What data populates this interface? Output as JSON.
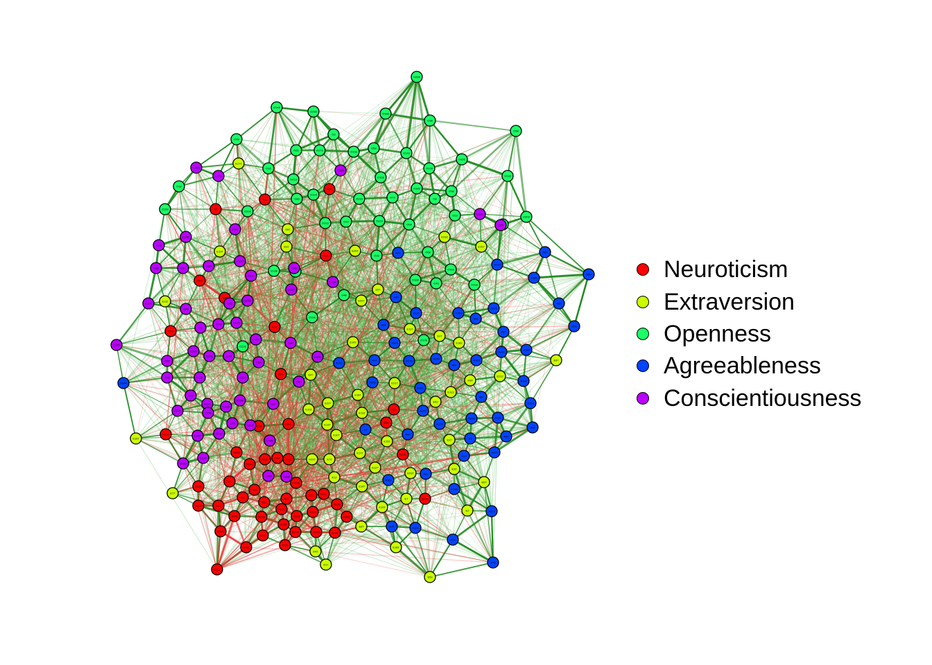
{
  "legend": [
    {
      "label": "Neuroticism",
      "color": "#ff0000"
    },
    {
      "label": "Extraversion",
      "color": "#ccff00"
    },
    {
      "label": "Openness",
      "color": "#1aff66"
    },
    {
      "label": "Agreeableness",
      "color": "#0044ff"
    },
    {
      "label": "Conscientiousness",
      "color": "#bb00ff"
    }
  ],
  "edge_colors": {
    "positive": "#1f8a1f",
    "negative": "#ee3333"
  },
  "nodes": [
    {
      "id": "O208",
      "g": 2
    },
    {
      "id": "O148",
      "g": 2
    },
    {
      "id": "O238",
      "g": 2
    },
    {
      "id": "O188",
      "g": 2
    },
    {
      "id": "O38",
      "g": 2
    },
    {
      "id": "O58",
      "g": 2
    },
    {
      "id": "O78",
      "g": 2
    },
    {
      "id": "O3",
      "g": 2
    },
    {
      "id": "O63",
      "g": 2
    },
    {
      "id": "O173",
      "g": 2
    },
    {
      "id": "O108",
      "g": 2
    },
    {
      "id": "O53",
      "g": 2
    },
    {
      "id": "O143",
      "g": 2
    },
    {
      "id": "O158",
      "g": 2
    },
    {
      "id": "E172",
      "g": 1
    },
    {
      "id": "O33",
      "g": 2
    },
    {
      "id": "O128",
      "g": 2
    },
    {
      "id": "O118",
      "g": 2
    },
    {
      "id": "O213",
      "g": 2
    },
    {
      "id": "O168",
      "g": 2
    },
    {
      "id": "O18",
      "g": 2
    },
    {
      "id": "O123",
      "g": 2
    },
    {
      "id": "O189",
      "g": 2
    },
    {
      "id": "O98",
      "g": 2
    },
    {
      "id": "O83",
      "g": 2
    },
    {
      "id": "O233",
      "g": 2
    },
    {
      "id": "O73",
      "g": 2
    },
    {
      "id": "O8",
      "g": 2
    },
    {
      "id": "O153",
      "g": 2
    },
    {
      "id": "O228",
      "g": 2
    },
    {
      "id": "O13",
      "g": 2
    },
    {
      "id": "O203",
      "g": 2
    },
    {
      "id": "O113",
      "g": 2
    },
    {
      "id": "O23",
      "g": 2
    },
    {
      "id": "O223",
      "g": 2
    },
    {
      "id": "O93",
      "g": 2
    },
    {
      "id": "O103",
      "g": 2
    },
    {
      "id": "E82",
      "g": 1
    },
    {
      "id": "E232",
      "g": 1
    },
    {
      "id": "E22",
      "g": 1
    },
    {
      "id": "E202",
      "g": 1
    },
    {
      "id": "E157",
      "g": 1
    },
    {
      "id": "E197",
      "g": 1
    },
    {
      "id": "O28",
      "g": 2
    },
    {
      "id": "O68",
      "g": 2
    },
    {
      "id": "O138",
      "g": 2
    },
    {
      "id": "O88",
      "g": 2
    },
    {
      "id": "O43",
      "g": 2
    },
    {
      "id": "O183",
      "g": 2
    },
    {
      "id": "O193",
      "g": 2
    },
    {
      "id": "O163",
      "g": 2
    },
    {
      "id": "O48",
      "g": 2
    },
    {
      "id": "E57",
      "g": 1
    },
    {
      "id": "E207",
      "g": 1
    },
    {
      "id": "E112",
      "g": 1
    },
    {
      "id": "O198",
      "g": 2
    },
    {
      "id": "E117",
      "g": 1
    },
    {
      "id": "E27",
      "g": 1
    },
    {
      "id": "O178",
      "g": 2
    },
    {
      "id": "E142",
      "g": 1
    },
    {
      "id": "E182",
      "g": 1
    },
    {
      "id": "O133",
      "g": 2
    },
    {
      "id": "E97",
      "g": 1
    },
    {
      "id": "E47",
      "g": 1
    },
    {
      "id": "E217",
      "g": 1
    },
    {
      "id": "E92",
      "g": 1
    },
    {
      "id": "E212",
      "g": 1
    },
    {
      "id": "E122",
      "g": 1
    },
    {
      "id": "E62",
      "g": 1
    },
    {
      "id": "E227",
      "g": 1
    },
    {
      "id": "E187",
      "g": 1
    },
    {
      "id": "E192",
      "g": 1
    },
    {
      "id": "E132",
      "g": 1
    },
    {
      "id": "E137",
      "g": 1
    },
    {
      "id": "E167",
      "g": 1
    },
    {
      "id": "E107",
      "g": 1
    },
    {
      "id": "E152",
      "g": 1
    },
    {
      "id": "E37",
      "g": 1
    },
    {
      "id": "E222",
      "g": 1
    },
    {
      "id": "E72",
      "g": 1
    },
    {
      "id": "E177",
      "g": 1
    },
    {
      "id": "E127",
      "g": 1
    },
    {
      "id": "E32",
      "g": 1
    },
    {
      "id": "E237",
      "g": 1
    },
    {
      "id": "E12",
      "g": 1
    },
    {
      "id": "E67",
      "g": 1
    },
    {
      "id": "E147",
      "g": 1
    },
    {
      "id": "E77",
      "g": 1
    },
    {
      "id": "E7",
      "g": 1
    },
    {
      "id": "E102",
      "g": 1
    },
    {
      "id": "E2",
      "g": 1
    },
    {
      "id": "E87",
      "g": 1
    },
    {
      "id": "E162",
      "g": 1
    },
    {
      "id": "E42",
      "g": 1
    },
    {
      "id": "E17",
      "g": 1
    },
    {
      "id": "E52",
      "g": 1
    },
    {
      "id": "A99",
      "g": 3
    },
    {
      "id": "A80",
      "g": 3
    },
    {
      "id": "A29",
      "g": 3
    },
    {
      "id": "A129",
      "g": 3
    },
    {
      "id": "A188",
      "g": 3
    },
    {
      "id": "A39",
      "g": 3
    },
    {
      "id": "A45",
      "g": 3
    },
    {
      "id": "A219",
      "g": 3
    },
    {
      "id": "A110",
      "g": 3
    },
    {
      "id": "A24",
      "g": 3
    },
    {
      "id": "A109",
      "g": 3
    },
    {
      "id": "A44",
      "g": 3
    },
    {
      "id": "A57",
      "g": 3
    },
    {
      "id": "A78",
      "g": 3
    },
    {
      "id": "A124",
      "g": 3
    },
    {
      "id": "A134",
      "g": 3
    },
    {
      "id": "A164",
      "g": 3
    },
    {
      "id": "A204",
      "g": 3
    },
    {
      "id": "A14",
      "g": 3
    },
    {
      "id": "A174",
      "g": 3
    },
    {
      "id": "A84",
      "g": 3
    },
    {
      "id": "A199",
      "g": 3
    },
    {
      "id": "A159",
      "g": 3
    },
    {
      "id": "A209",
      "g": 3
    },
    {
      "id": "A114",
      "g": 3
    },
    {
      "id": "A139",
      "g": 3
    },
    {
      "id": "A64",
      "g": 3
    },
    {
      "id": "A234",
      "g": 3
    },
    {
      "id": "A154",
      "g": 3
    },
    {
      "id": "A119",
      "g": 3
    },
    {
      "id": "A149",
      "g": 3
    },
    {
      "id": "A179",
      "g": 3
    },
    {
      "id": "A34",
      "g": 3
    },
    {
      "id": "A4",
      "g": 3
    },
    {
      "id": "A69",
      "g": 3
    },
    {
      "id": "A89",
      "g": 3
    },
    {
      "id": "A9",
      "g": 3
    },
    {
      "id": "A94",
      "g": 3
    },
    {
      "id": "A224",
      "g": 3
    },
    {
      "id": "A19",
      "g": 3
    },
    {
      "id": "A104",
      "g": 3
    },
    {
      "id": "A184",
      "g": 3
    },
    {
      "id": "A214",
      "g": 3
    },
    {
      "id": "A74",
      "g": 3
    },
    {
      "id": "A169",
      "g": 3
    },
    {
      "id": "A54",
      "g": 3
    },
    {
      "id": "A49",
      "g": 3
    },
    {
      "id": "A144",
      "g": 3
    },
    {
      "id": "N66",
      "g": 0
    },
    {
      "id": "N1",
      "g": 0
    },
    {
      "id": "N11",
      "g": 0
    },
    {
      "id": "N81",
      "g": 0
    },
    {
      "id": "N16",
      "g": 0
    },
    {
      "id": "N86",
      "g": 0
    },
    {
      "id": "N76",
      "g": 0
    },
    {
      "id": "N71",
      "g": 0
    },
    {
      "id": "N36",
      "g": 0
    },
    {
      "id": "N96",
      "g": 0
    },
    {
      "id": "N56",
      "g": 0
    },
    {
      "id": "N101",
      "g": 0
    },
    {
      "id": "N216",
      "g": 0
    },
    {
      "id": "N41",
      "g": 0
    },
    {
      "id": "N106",
      "g": 0
    },
    {
      "id": "N121",
      "g": 0
    },
    {
      "id": "N26",
      "g": 0
    },
    {
      "id": "N141",
      "g": 0
    },
    {
      "id": "N31",
      "g": 0
    },
    {
      "id": "N161",
      "g": 0
    },
    {
      "id": "N131",
      "g": 0
    },
    {
      "id": "N91",
      "g": 0
    },
    {
      "id": "N196",
      "g": 0
    },
    {
      "id": "N46",
      "g": 0
    },
    {
      "id": "N211",
      "g": 0
    },
    {
      "id": "N61",
      "g": 0
    },
    {
      "id": "N166",
      "g": 0
    },
    {
      "id": "N6",
      "g": 0
    },
    {
      "id": "N111",
      "g": 0
    },
    {
      "id": "N146",
      "g": 0
    },
    {
      "id": "N51",
      "g": 0
    },
    {
      "id": "N21",
      "g": 0
    },
    {
      "id": "N156",
      "g": 0
    },
    {
      "id": "N126",
      "g": 0
    },
    {
      "id": "N176",
      "g": 0
    },
    {
      "id": "N136",
      "g": 0
    },
    {
      "id": "N186",
      "g": 0
    },
    {
      "id": "N201",
      "g": 0
    },
    {
      "id": "N116",
      "g": 0
    },
    {
      "id": "N221",
      "g": 0
    },
    {
      "id": "N191",
      "g": 0
    },
    {
      "id": "N226",
      "g": 0
    },
    {
      "id": "N171",
      "g": 0
    },
    {
      "id": "N181",
      "g": 0
    },
    {
      "id": "N206",
      "g": 0
    },
    {
      "id": "N231",
      "g": 0
    },
    {
      "id": "N236",
      "g": 0
    },
    {
      "id": "N151",
      "g": 0
    },
    {
      "id": "C185",
      "g": 4
    },
    {
      "id": "C175",
      "g": 4
    },
    {
      "id": "C190",
      "g": 4
    },
    {
      "id": "C200",
      "g": 4
    },
    {
      "id": "C55",
      "g": 4
    },
    {
      "id": "C90",
      "g": 4
    },
    {
      "id": "C240",
      "g": 4
    },
    {
      "id": "C25",
      "g": 4
    },
    {
      "id": "C15",
      "g": 4
    },
    {
      "id": "C60",
      "g": 4
    },
    {
      "id": "C120",
      "g": 4
    },
    {
      "id": "C130",
      "g": 4
    },
    {
      "id": "C35",
      "g": 4
    },
    {
      "id": "C170",
      "g": 4
    },
    {
      "id": "C150",
      "g": 4
    },
    {
      "id": "C235",
      "g": 4
    },
    {
      "id": "C100",
      "g": 4
    },
    {
      "id": "C45",
      "g": 4
    },
    {
      "id": "C10",
      "g": 4
    },
    {
      "id": "C215",
      "g": 4
    },
    {
      "id": "C5",
      "g": 4
    },
    {
      "id": "C75",
      "g": 4
    },
    {
      "id": "C115",
      "g": 4
    },
    {
      "id": "C145",
      "g": 4
    },
    {
      "id": "C140",
      "g": 4
    },
    {
      "id": "C30",
      "g": 4
    },
    {
      "id": "C80",
      "g": 4
    },
    {
      "id": "C205",
      "g": 4
    },
    {
      "id": "C225",
      "g": 4
    },
    {
      "id": "C20",
      "g": 4
    },
    {
      "id": "C65",
      "g": 4
    },
    {
      "id": "C165",
      "g": 4
    },
    {
      "id": "C95",
      "g": 4
    },
    {
      "id": "C110",
      "g": 4
    },
    {
      "id": "C220",
      "g": 4
    },
    {
      "id": "C40",
      "g": 4
    },
    {
      "id": "C50",
      "g": 4
    },
    {
      "id": "C125",
      "g": 4
    },
    {
      "id": "C105",
      "g": 4
    },
    {
      "id": "C195",
      "g": 4
    },
    {
      "id": "C85",
      "g": 4
    },
    {
      "id": "C230",
      "g": 4
    },
    {
      "id": "C70",
      "g": 4
    },
    {
      "id": "C160",
      "g": 4
    },
    {
      "id": "C210",
      "g": 4
    },
    {
      "id": "C135",
      "g": 4
    },
    {
      "id": "C180",
      "g": 4
    },
    {
      "id": "C155",
      "g": 4
    },
    {
      "id": "C245",
      "g": 4
    },
    {
      "id": "C250",
      "g": 4
    },
    {
      "id": "C255",
      "g": 4
    },
    {
      "id": "C260",
      "g": 4
    }
  ]
}
